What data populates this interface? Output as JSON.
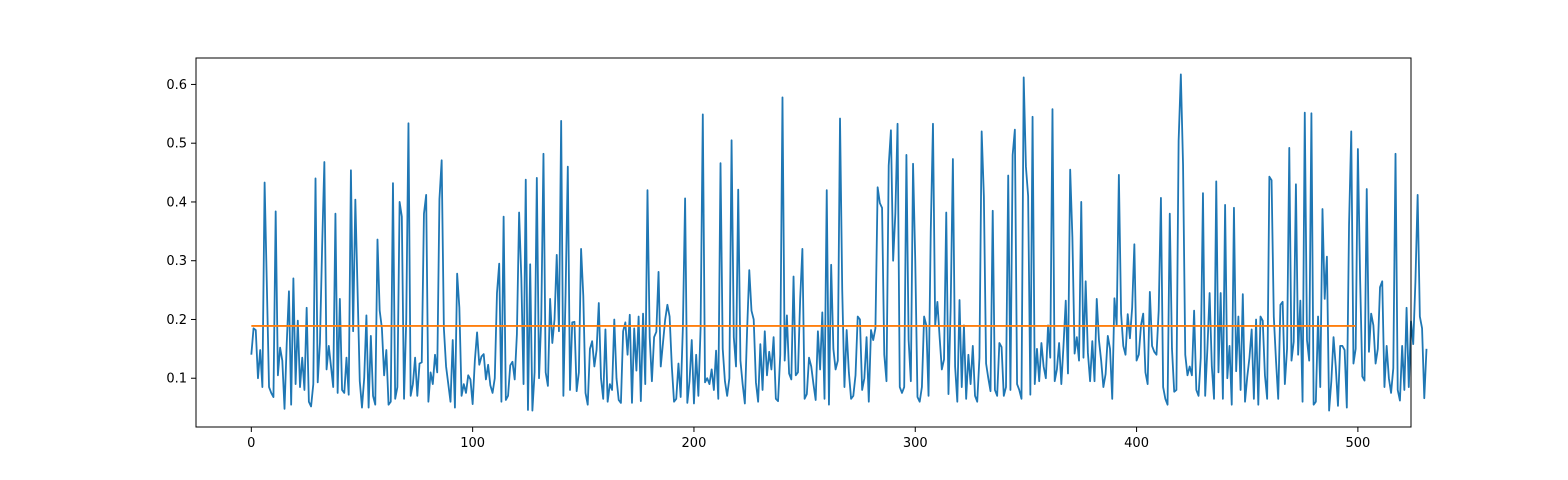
{
  "chart_data": {
    "type": "line",
    "title": "",
    "xlabel": "",
    "ylabel": "",
    "xlim": [
      -25,
      524
    ],
    "ylim": [
      0.017,
      0.645
    ],
    "xticks": [
      0,
      100,
      200,
      300,
      400,
      500
    ],
    "yticks": [
      0.1,
      0.2,
      0.3,
      0.4,
      0.5,
      0.6
    ],
    "grid": false,
    "legend": "none",
    "series": [
      {
        "color": "#1f77b4",
        "x_start": 0,
        "x_step": 1,
        "values": [
          0.14,
          0.185,
          0.182,
          0.1,
          0.148,
          0.085,
          0.433,
          0.26,
          0.085,
          0.075,
          0.068,
          0.384,
          0.105,
          0.152,
          0.13,
          0.048,
          0.16,
          0.248,
          0.055,
          0.27,
          0.09,
          0.198,
          0.085,
          0.135,
          0.08,
          0.22,
          0.06,
          0.052,
          0.09,
          0.44,
          0.093,
          0.16,
          0.325,
          0.468,
          0.115,
          0.155,
          0.12,
          0.085,
          0.38,
          0.075,
          0.235,
          0.08,
          0.075,
          0.135,
          0.072,
          0.454,
          0.18,
          0.404,
          0.25,
          0.095,
          0.05,
          0.1,
          0.207,
          0.05,
          0.172,
          0.07,
          0.055,
          0.336,
          0.215,
          0.185,
          0.105,
          0.148,
          0.055,
          0.06,
          0.432,
          0.065,
          0.085,
          0.4,
          0.375,
          0.065,
          0.2,
          0.534,
          0.07,
          0.09,
          0.135,
          0.07,
          0.125,
          0.127,
          0.38,
          0.412,
          0.06,
          0.11,
          0.09,
          0.14,
          0.11,
          0.405,
          0.471,
          0.185,
          0.12,
          0.09,
          0.06,
          0.165,
          0.05,
          0.278,
          0.22,
          0.07,
          0.09,
          0.075,
          0.105,
          0.098,
          0.056,
          0.13,
          0.178,
          0.123,
          0.137,
          0.141,
          0.098,
          0.123,
          0.088,
          0.075,
          0.1,
          0.245,
          0.295,
          0.06,
          0.375,
          0.063,
          0.07,
          0.122,
          0.128,
          0.098,
          0.175,
          0.382,
          0.27,
          0.09,
          0.438,
          0.046,
          0.294,
          0.045,
          0.11,
          0.441,
          0.1,
          0.2,
          0.482,
          0.11,
          0.087,
          0.235,
          0.16,
          0.2,
          0.31,
          0.18,
          0.538,
          0.07,
          0.245,
          0.46,
          0.08,
          0.195,
          0.196,
          0.078,
          0.11,
          0.32,
          0.24,
          0.075,
          0.055,
          0.15,
          0.163,
          0.12,
          0.148,
          0.228,
          0.1,
          0.065,
          0.183,
          0.06,
          0.09,
          0.08,
          0.2,
          0.1,
          0.063,
          0.058,
          0.18,
          0.195,
          0.14,
          0.208,
          0.058,
          0.185,
          0.113,
          0.205,
          0.061,
          0.21,
          0.09,
          0.42,
          0.17,
          0.095,
          0.17,
          0.179,
          0.281,
          0.12,
          0.16,
          0.2,
          0.225,
          0.205,
          0.12,
          0.06,
          0.065,
          0.125,
          0.068,
          0.187,
          0.406,
          0.058,
          0.095,
          0.165,
          0.057,
          0.14,
          0.07,
          0.185,
          0.549,
          0.093,
          0.1,
          0.09,
          0.115,
          0.08,
          0.147,
          0.065,
          0.466,
          0.15,
          0.095,
          0.07,
          0.1,
          0.505,
          0.17,
          0.12,
          0.421,
          0.13,
          0.09,
          0.057,
          0.18,
          0.284,
          0.215,
          0.2,
          0.093,
          0.06,
          0.158,
          0.08,
          0.18,
          0.105,
          0.145,
          0.115,
          0.17,
          0.065,
          0.061,
          0.14,
          0.578,
          0.13,
          0.207,
          0.108,
          0.098,
          0.273,
          0.105,
          0.11,
          0.235,
          0.32,
          0.065,
          0.073,
          0.135,
          0.12,
          0.09,
          0.063,
          0.18,
          0.115,
          0.212,
          0.065,
          0.42,
          0.055,
          0.293,
          0.15,
          0.115,
          0.13,
          0.542,
          0.25,
          0.085,
          0.182,
          0.11,
          0.065,
          0.07,
          0.105,
          0.205,
          0.2,
          0.08,
          0.1,
          0.17,
          0.06,
          0.182,
          0.165,
          0.185,
          0.425,
          0.398,
          0.39,
          0.14,
          0.095,
          0.462,
          0.522,
          0.3,
          0.38,
          0.533,
          0.085,
          0.075,
          0.085,
          0.48,
          0.165,
          0.095,
          0.465,
          0.3,
          0.068,
          0.06,
          0.085,
          0.205,
          0.19,
          0.07,
          0.35,
          0.533,
          0.19,
          0.23,
          0.17,
          0.115,
          0.132,
          0.382,
          0.073,
          0.22,
          0.473,
          0.12,
          0.06,
          0.233,
          0.085,
          0.19,
          0.065,
          0.14,
          0.09,
          0.155,
          0.07,
          0.06,
          0.135,
          0.52,
          0.41,
          0.125,
          0.1,
          0.078,
          0.385,
          0.08,
          0.07,
          0.16,
          0.153,
          0.07,
          0.085,
          0.445,
          0.08,
          0.48,
          0.523,
          0.09,
          0.08,
          0.065,
          0.612,
          0.46,
          0.41,
          0.072,
          0.545,
          0.09,
          0.15,
          0.095,
          0.16,
          0.12,
          0.1,
          0.19,
          0.135,
          0.558,
          0.095,
          0.115,
          0.16,
          0.09,
          0.157,
          0.232,
          0.108,
          0.455,
          0.34,
          0.142,
          0.17,
          0.13,
          0.4,
          0.135,
          0.265,
          0.143,
          0.095,
          0.163,
          0.095,
          0.235,
          0.165,
          0.13,
          0.085,
          0.107,
          0.172,
          0.15,
          0.065,
          0.236,
          0.19,
          0.446,
          0.21,
          0.155,
          0.14,
          0.209,
          0.168,
          0.22,
          0.328,
          0.13,
          0.14,
          0.19,
          0.21,
          0.11,
          0.09,
          0.247,
          0.155,
          0.145,
          0.14,
          0.215,
          0.407,
          0.085,
          0.065,
          0.055,
          0.38,
          0.15,
          0.077,
          0.08,
          0.504,
          0.617,
          0.463,
          0.14,
          0.105,
          0.12,
          0.105,
          0.215,
          0.08,
          0.07,
          0.135,
          0.415,
          0.07,
          0.15,
          0.245,
          0.12,
          0.065,
          0.435,
          0.11,
          0.245,
          0.065,
          0.395,
          0.1,
          0.155,
          0.055,
          0.39,
          0.112,
          0.205,
          0.08,
          0.243,
          0.06,
          0.102,
          0.135,
          0.183,
          0.065,
          0.2,
          0.055,
          0.205,
          0.198,
          0.105,
          0.065,
          0.443,
          0.437,
          0.205,
          0.13,
          0.065,
          0.225,
          0.23,
          0.09,
          0.15,
          0.492,
          0.13,
          0.162,
          0.43,
          0.14,
          0.232,
          0.06,
          0.552,
          0.165,
          0.13,
          0.551,
          0.055,
          0.06,
          0.205,
          0.085,
          0.388,
          0.235,
          0.307,
          0.045,
          0.095,
          0.17,
          0.12,
          0.053,
          0.155,
          0.155,
          0.148,
          0.05,
          0.36,
          0.52,
          0.125,
          0.15,
          0.49,
          0.27,
          0.103,
          0.096,
          0.422,
          0.145,
          0.21,
          0.19,
          0.125,
          0.15,
          0.255,
          0.265,
          0.085,
          0.155,
          0.1,
          0.075,
          0.117,
          0.482,
          0.08,
          0.062,
          0.155,
          0.08,
          0.22,
          0.085,
          0.197,
          0.158,
          0.265,
          0.412,
          0.205,
          0.185,
          0.066,
          0.15
        ]
      },
      {
        "color": "#ff7f0e",
        "x": [
          0,
          499
        ],
        "values": [
          0.189,
          0.189
        ]
      }
    ]
  }
}
